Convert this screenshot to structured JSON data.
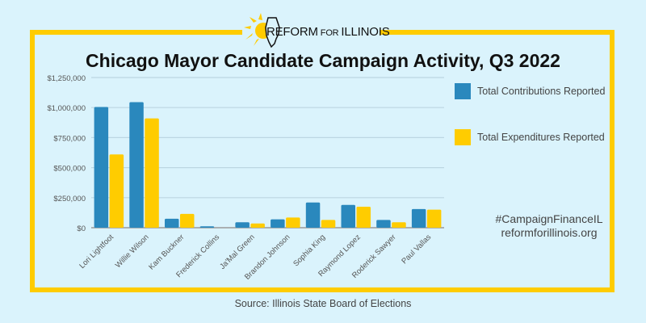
{
  "logo": {
    "main": "REFORM",
    "small": "FOR",
    "end": "ILLINOIS"
  },
  "footer": {
    "hashtag": "#CampaignFinanceIL",
    "website": "reformforillinois.org",
    "source": "Source: Illinois State Board of Elections"
  },
  "colors": {
    "background": "#daf3fc",
    "border": "#ffcc00",
    "contributions": "#2a88bd",
    "expenditures": "#ffcc00",
    "grid": "#bcd6e2"
  },
  "chart_data": {
    "type": "bar",
    "title": "Chicago Mayor Candidate Campaign Activity, Q3 2022",
    "xlabel": "",
    "ylabel": "",
    "ylim": [
      0,
      1250000
    ],
    "yticks": [
      0,
      250000,
      500000,
      750000,
      1000000,
      1250000
    ],
    "ytick_labels": [
      "$0",
      "$250,000",
      "$500,000",
      "$750,000",
      "$1,000,000",
      "$1,250,000"
    ],
    "grid": true,
    "legend_position": "right",
    "categories": [
      "Lori Lightfoot",
      "Willie Wilson",
      "Kam Buckner",
      "Frederick Collins",
      "Ja'Mal Green",
      "Brandon Johnson",
      "Sophia King",
      "Raymond Lopez",
      "Roderick Sawyer",
      "Paul Vallas"
    ],
    "series": [
      {
        "name": "Total Contributions Reported",
        "color": "#2a88bd",
        "values": [
          1005000,
          1045000,
          75000,
          12000,
          45000,
          70000,
          210000,
          190000,
          65000,
          155000
        ]
      },
      {
        "name": "Total Expenditures Reported",
        "color": "#ffcc00",
        "values": [
          610000,
          910000,
          115000,
          0,
          35000,
          85000,
          65000,
          175000,
          45000,
          150000
        ]
      }
    ]
  }
}
